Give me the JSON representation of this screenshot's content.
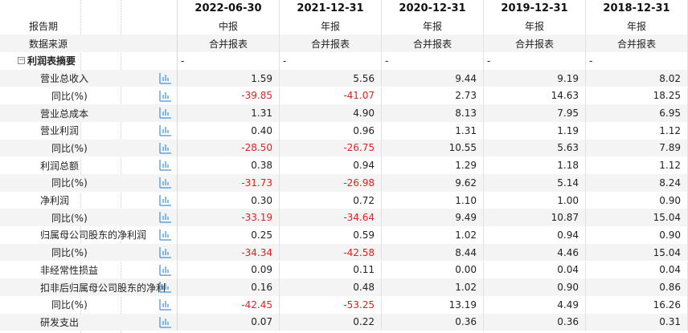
{
  "header": {
    "dates": [
      "2022-06-30",
      "2021-12-31",
      "2020-12-31",
      "2019-12-31",
      "2018-12-31"
    ],
    "report_period_label": "报告期",
    "report_types": [
      "中报",
      "年报",
      "年报",
      "年报",
      "年报"
    ],
    "data_source_label": "数据来源",
    "sources": [
      "合并报表",
      "合并报表",
      "合并报表",
      "合并报表",
      "合并报表"
    ]
  },
  "section": {
    "collapse_icon": "minus-box-icon",
    "title": "利润表摘要",
    "placeholders": [
      "-",
      "-",
      "-",
      "-",
      "-"
    ]
  },
  "rows": [
    {
      "label": "营业总收入",
      "indent": 1,
      "values": [
        "1.59",
        "5.56",
        "9.44",
        "9.19",
        "8.02"
      ]
    },
    {
      "label": "同比(%)",
      "indent": 2,
      "values": [
        "-39.85",
        "-41.07",
        "2.73",
        "14.63",
        "18.25"
      ]
    },
    {
      "label": "营业总成本",
      "indent": 1,
      "values": [
        "1.31",
        "4.90",
        "8.13",
        "7.95",
        "6.95"
      ]
    },
    {
      "label": "营业利润",
      "indent": 1,
      "values": [
        "0.40",
        "0.96",
        "1.31",
        "1.19",
        "1.12"
      ]
    },
    {
      "label": "同比(%)",
      "indent": 2,
      "values": [
        "-28.50",
        "-26.75",
        "10.55",
        "5.63",
        "7.89"
      ]
    },
    {
      "label": "利润总额",
      "indent": 1,
      "values": [
        "0.38",
        "0.94",
        "1.29",
        "1.18",
        "1.12"
      ]
    },
    {
      "label": "同比(%)",
      "indent": 2,
      "values": [
        "-31.73",
        "-26.98",
        "9.62",
        "5.14",
        "8.24"
      ]
    },
    {
      "label": "净利润",
      "indent": 1,
      "values": [
        "0.30",
        "0.72",
        "1.10",
        "1.00",
        "0.90"
      ]
    },
    {
      "label": "同比(%)",
      "indent": 2,
      "values": [
        "-33.19",
        "-34.64",
        "9.49",
        "10.87",
        "15.04"
      ]
    },
    {
      "label": "归属母公司股东的净利润",
      "indent": 1,
      "values": [
        "0.25",
        "0.59",
        "1.02",
        "0.94",
        "0.90"
      ]
    },
    {
      "label": "同比(%)",
      "indent": 2,
      "values": [
        "-34.34",
        "-42.58",
        "8.44",
        "4.46",
        "15.04"
      ]
    },
    {
      "label": "非经常性损益",
      "indent": 1,
      "values": [
        "0.09",
        "0.11",
        "0.00",
        "0.04",
        "0.04"
      ]
    },
    {
      "label": "扣非后归属母公司股东的净利",
      "indent": 1,
      "values": [
        "0.16",
        "0.48",
        "1.02",
        "0.90",
        "0.86"
      ]
    },
    {
      "label": "同比(%)",
      "indent": 2,
      "values": [
        "-42.45",
        "-53.25",
        "13.19",
        "4.49",
        "16.26"
      ]
    },
    {
      "label": "研发支出",
      "indent": 1,
      "values": [
        "0.07",
        "0.22",
        "0.36",
        "0.36",
        "0.31"
      ]
    }
  ],
  "chart_icon": "bar-chart-icon",
  "colors": {
    "negative": "#e02020",
    "icon": "#3a8fd9",
    "alt_row": "#f4f4f4"
  }
}
